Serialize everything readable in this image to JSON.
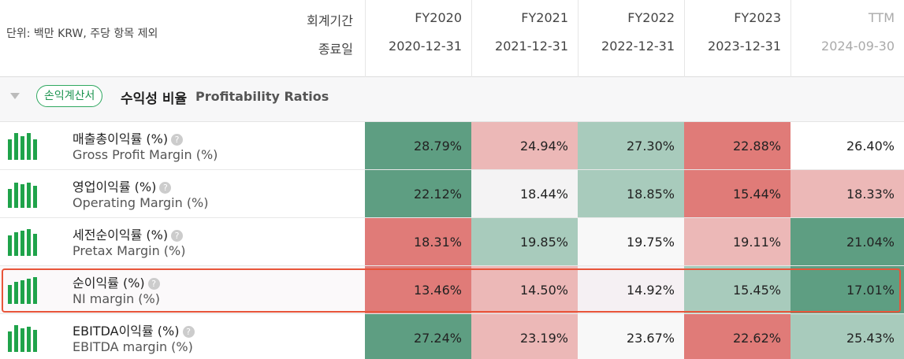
{
  "header": {
    "unit_note": "단위: 백만 KRW, 주당 항목 제외",
    "period_label": "회계기간",
    "date_label": "종료일",
    "columns": [
      {
        "period": "FY2020",
        "date": "2020-12-31"
      },
      {
        "period": "FY2021",
        "date": "2021-12-31"
      },
      {
        "period": "FY2022",
        "date": "2022-12-31"
      },
      {
        "period": "FY2023",
        "date": "2023-12-31"
      },
      {
        "period": "TTM",
        "date": "2024-09-30"
      }
    ]
  },
  "section": {
    "badge": "손익계산서",
    "title": "수익성 비율",
    "subtitle": "Profitability Ratios"
  },
  "rows": [
    {
      "name_ko": "매출총이익률 (%)",
      "name_en": "Gross Profit Margin (%)",
      "cells": [
        {
          "text": "28.79%",
          "color": "#5e9e82"
        },
        {
          "text": "24.94%",
          "color": "#ecb8b7"
        },
        {
          "text": "27.30%",
          "color": "#a8cbbc"
        },
        {
          "text": "22.88%",
          "color": "#e07b78"
        },
        {
          "text": "26.40%",
          "color": "#ffffff"
        }
      ]
    },
    {
      "name_ko": "영업이익률 (%)",
      "name_en": "Operating Margin (%)",
      "cells": [
        {
          "text": "22.12%",
          "color": "#5e9e82"
        },
        {
          "text": "18.44%",
          "color": "#f4f3f4"
        },
        {
          "text": "18.85%",
          "color": "#a8cbbc"
        },
        {
          "text": "15.44%",
          "color": "#e07b78"
        },
        {
          "text": "18.33%",
          "color": "#ecb8b7"
        }
      ]
    },
    {
      "name_ko": "세전순이익률 (%)",
      "name_en": "Pretax Margin (%)",
      "cells": [
        {
          "text": "18.31%",
          "color": "#e07b78"
        },
        {
          "text": "19.85%",
          "color": "#a8cbbc"
        },
        {
          "text": "19.75%",
          "color": "#f8f8f8"
        },
        {
          "text": "19.11%",
          "color": "#ecb8b7"
        },
        {
          "text": "21.04%",
          "color": "#5e9e82"
        }
      ]
    },
    {
      "name_ko": "순이익률 (%)",
      "name_en": "NI margin (%)",
      "highlighted": true,
      "cells": [
        {
          "text": "13.46%",
          "color": "#e07b78"
        },
        {
          "text": "14.50%",
          "color": "#ecb8b7"
        },
        {
          "text": "14.92%",
          "color": "#f5f0f3"
        },
        {
          "text": "15.45%",
          "color": "#a8cbbc"
        },
        {
          "text": "17.01%",
          "color": "#5e9e82"
        }
      ]
    },
    {
      "name_ko": "EBITDA이익률 (%)",
      "name_en": "EBITDA margin (%)",
      "cells": [
        {
          "text": "27.24%",
          "color": "#5e9e82"
        },
        {
          "text": "23.19%",
          "color": "#ecb8b7"
        },
        {
          "text": "23.67%",
          "color": "#f8f8f8"
        },
        {
          "text": "22.62%",
          "color": "#e07b78"
        },
        {
          "text": "25.43%",
          "color": "#a8cbbc"
        }
      ]
    }
  ]
}
